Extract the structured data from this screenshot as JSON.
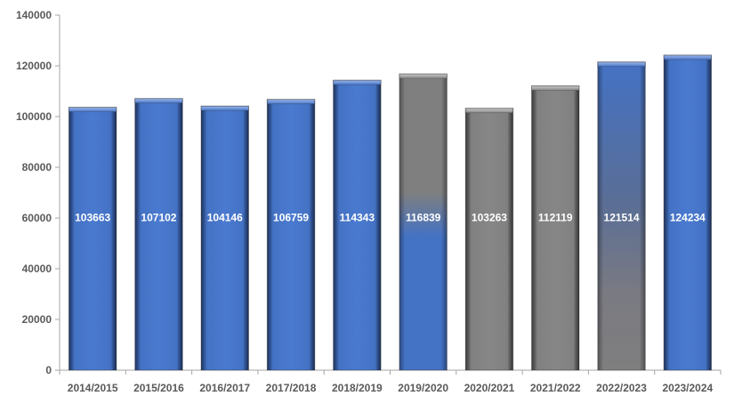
{
  "chart_data": {
    "type": "bar",
    "title": "",
    "xlabel": "",
    "ylabel": "",
    "ylim": [
      0,
      140000
    ],
    "yticks": [
      0,
      20000,
      40000,
      60000,
      80000,
      100000,
      120000,
      140000
    ],
    "grid": false,
    "legend": "none",
    "categories": [
      "2014/2015",
      "2015/2016",
      "2016/2017",
      "2017/2018",
      "2018/2019",
      "2019/2020",
      "2020/2021",
      "2021/2022",
      "2022/2023",
      "2023/2024"
    ],
    "values": [
      103663,
      107102,
      104146,
      106759,
      114343,
      116839,
      103263,
      112119,
      121514,
      124234
    ],
    "bar_styles": [
      "blue",
      "blue",
      "blue",
      "blue",
      "blue",
      "gray-to-blue",
      "gray",
      "gray",
      "gray-to-blue",
      "blue"
    ],
    "colors": {
      "blue": "#4472C4",
      "gray": "#7F7F7F",
      "axis": "#A6A6A6",
      "tick_text": "#595959",
      "data_label": "#FFFFFF"
    }
  }
}
